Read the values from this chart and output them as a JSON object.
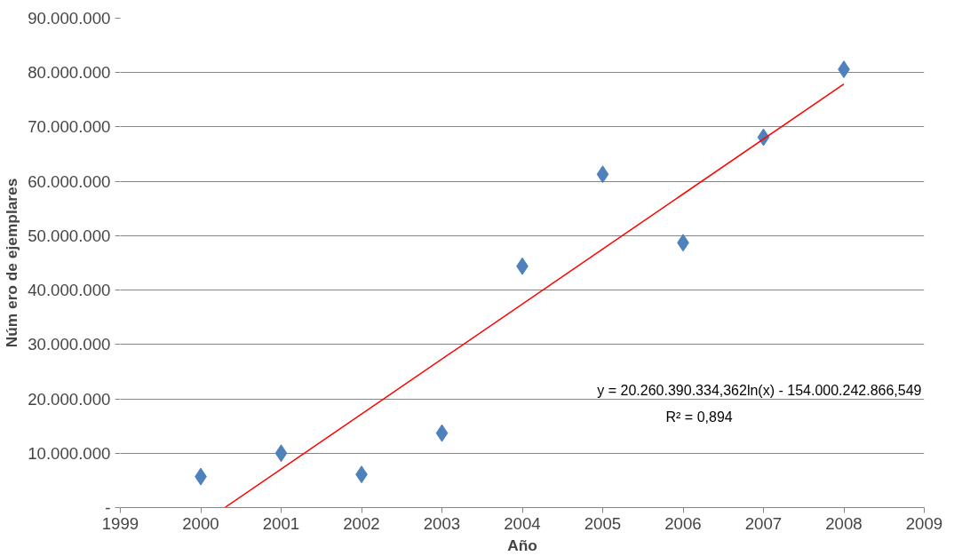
{
  "chart_data": {
    "type": "scatter",
    "xlabel": "Año",
    "ylabel": "Núm ero de ejemplares",
    "x": [
      2000,
      2001,
      2002,
      2003,
      2004,
      2005,
      2006,
      2007,
      2008
    ],
    "series": [
      {
        "color": "#4f81bd",
        "marker": "diamond",
        "values": [
          5700000,
          10000000,
          6100000,
          13700000,
          44400000,
          61300000,
          48700000,
          68100000,
          80600000
        ]
      },
      {
        "type": "line",
        "color": "#ff0000",
        "x": [
          2000.3,
          2008
        ],
        "values": [
          0,
          77900000
        ]
      }
    ],
    "xlim": [
      1999,
      2009
    ],
    "xticks": [
      1999,
      2000,
      2001,
      2002,
      2003,
      2004,
      2005,
      2006,
      2007,
      2008,
      2009
    ],
    "ylim": [
      0,
      90000000
    ],
    "yticks": [
      {
        "value": 0,
        "label": "-"
      },
      {
        "value": 10000000,
        "label": "10.000.000"
      },
      {
        "value": 20000000,
        "label": "20.000.000"
      },
      {
        "value": 30000000,
        "label": "30.000.000"
      },
      {
        "value": 40000000,
        "label": "40.000.000"
      },
      {
        "value": 50000000,
        "label": "50.000.000"
      },
      {
        "value": 60000000,
        "label": "60.000.000"
      },
      {
        "value": 70000000,
        "label": "70.000.000"
      },
      {
        "value": 80000000,
        "label": "80.000.000"
      },
      {
        "value": 90000000,
        "label": "90.000.000"
      }
    ],
    "grid": "y",
    "annotations": [
      "y = 20.260.390.334,362ln(x) - 154.000.242.866,549",
      "R² = 0,894"
    ]
  }
}
